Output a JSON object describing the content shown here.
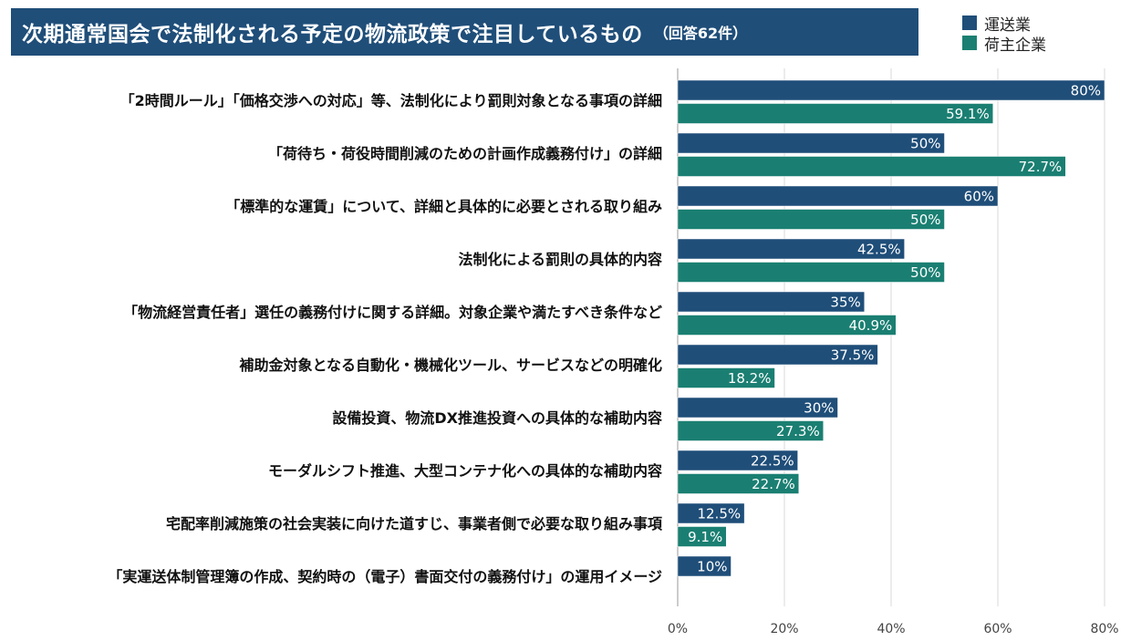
{
  "header": {
    "title": "次期通常国会で法制化される予定の物流政策で注目しているもの",
    "subtitle": "（回答62件）"
  },
  "colors": {
    "transport": "#1f4e79",
    "shipper": "#1a7f72",
    "grid": "#d9d9d9"
  },
  "chart_data": {
    "type": "bar",
    "orientation": "horizontal",
    "title": "次期通常国会で法制化される予定の物流政策で注目しているもの",
    "categories": [
      "「2時間ルール」「価格交渉への対応」等、法制化により罰則対象となる事項の詳細",
      "「荷待ち・荷役時間削減のための計画作成義務付け」の詳細",
      "「標準的な運賃」について、詳細と具体的に必要とされる取り組み",
      "法制化による罰則の具体的内容",
      "「物流経営責任者」選任の義務付けに関する詳細。対象企業や満たすべき条件など",
      "補助金対象となる自動化・機械化ツール、サービスなどの明確化",
      "設備投資、物流DX推進投資への具体的な補助内容",
      "モーダルシフト推進、大型コンテナ化への具体的な補助内容",
      "宅配率削減施策の社会実装に向けた道すじ、事業者側で必要な取り組み事項",
      "「実運送体制管理簿の作成、契約時の（電子）書面交付の義務付け」の運用イメージ"
    ],
    "series": [
      {
        "name": "運送業",
        "values": [
          80,
          50,
          60,
          42.5,
          35,
          37.5,
          30,
          22.5,
          12.5,
          10
        ],
        "labels": [
          "80%",
          "50%",
          "60%",
          "42.5%",
          "35%",
          "37.5%",
          "30%",
          "22.5%",
          "12.5%",
          "10%"
        ]
      },
      {
        "name": "荷主企業",
        "values": [
          59.1,
          72.7,
          50,
          50,
          40.9,
          18.2,
          27.3,
          22.7,
          9.1,
          null
        ],
        "labels": [
          "59.1%",
          "72.7%",
          "50%",
          "50%",
          "40.9%",
          "18.2%",
          "27.3%",
          "22.7%",
          "9.1%",
          null
        ]
      }
    ],
    "xlim": [
      0,
      80
    ],
    "xticks": [
      "0%",
      "20%",
      "40%",
      "60%",
      "80%"
    ],
    "xtick_values": [
      0,
      20,
      40,
      60,
      80
    ],
    "grid": true,
    "legend": "top-right"
  }
}
